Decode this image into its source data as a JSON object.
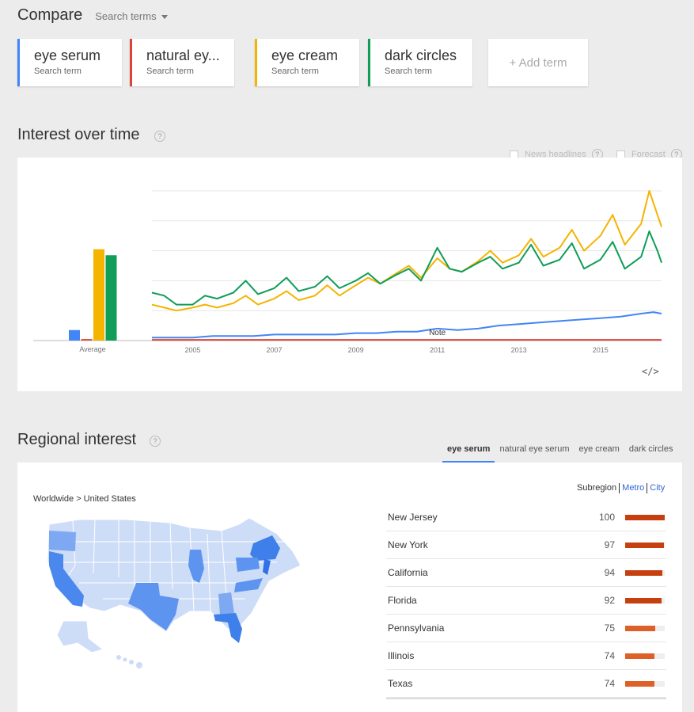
{
  "compare": {
    "title": "Compare",
    "search_terms_label": "Search terms",
    "add_term_label": "+ Add term"
  },
  "terms": [
    {
      "name": "eye serum",
      "sub": "Search term",
      "color": "#4285f4"
    },
    {
      "name": "natural ey...",
      "sub": "Search term",
      "color": "#db4437"
    },
    {
      "name": "eye cream",
      "sub": "Search term",
      "color": "#f4b400"
    },
    {
      "name": "dark circles",
      "sub": "Search term",
      "color": "#0f9d58"
    }
  ],
  "interest": {
    "title": "Interest over time",
    "help": "?",
    "news_headlines_label": "News headlines",
    "forecast_label": "Forecast",
    "embed_icon": "</>"
  },
  "chart_data": {
    "type": "line",
    "average": {
      "label": "Average",
      "values": [
        7,
        1,
        61,
        57
      ],
      "colors": [
        "#4285f4",
        "#db4437",
        "#f4b400",
        "#0f9d58"
      ]
    },
    "x_tick_labels": [
      "2005",
      "2007",
      "2009",
      "2011",
      "2013",
      "2015"
    ],
    "x_tick_years": [
      2005,
      2007,
      2009,
      2011,
      2013,
      2015
    ],
    "x_range": [
      2004.0,
      2016.5
    ],
    "ylim": [
      0,
      100
    ],
    "gridlines": 5,
    "annotation": {
      "label": "Note",
      "x": 2011.0
    },
    "series": [
      {
        "color": "#4285f4",
        "points": [
          [
            2004.0,
            2
          ],
          [
            2004.5,
            2
          ],
          [
            2005.0,
            2
          ],
          [
            2005.5,
            3
          ],
          [
            2006.0,
            3
          ],
          [
            2006.5,
            3
          ],
          [
            2007.0,
            4
          ],
          [
            2007.5,
            4
          ],
          [
            2008.0,
            4
          ],
          [
            2008.5,
            4
          ],
          [
            2009.0,
            5
          ],
          [
            2009.5,
            5
          ],
          [
            2010.0,
            6
          ],
          [
            2010.5,
            6
          ],
          [
            2011.0,
            8
          ],
          [
            2011.5,
            7
          ],
          [
            2012.0,
            8
          ],
          [
            2012.5,
            10
          ],
          [
            2013.0,
            11
          ],
          [
            2013.5,
            12
          ],
          [
            2014.0,
            13
          ],
          [
            2014.5,
            14
          ],
          [
            2015.0,
            15
          ],
          [
            2015.5,
            16
          ],
          [
            2016.0,
            18
          ],
          [
            2016.3,
            19
          ],
          [
            2016.5,
            18
          ]
        ]
      },
      {
        "color": "#db4437",
        "points": [
          [
            2004.0,
            0.5
          ],
          [
            2016.5,
            0.5
          ]
        ]
      },
      {
        "color": "#f4b400",
        "points": [
          [
            2004.0,
            24
          ],
          [
            2004.3,
            22
          ],
          [
            2004.6,
            20
          ],
          [
            2005.0,
            22
          ],
          [
            2005.3,
            24
          ],
          [
            2005.6,
            22
          ],
          [
            2006.0,
            25
          ],
          [
            2006.3,
            30
          ],
          [
            2006.6,
            24
          ],
          [
            2007.0,
            28
          ],
          [
            2007.3,
            33
          ],
          [
            2007.6,
            27
          ],
          [
            2008.0,
            30
          ],
          [
            2008.3,
            37
          ],
          [
            2008.6,
            30
          ],
          [
            2009.0,
            37
          ],
          [
            2009.3,
            42
          ],
          [
            2009.6,
            38
          ],
          [
            2010.0,
            45
          ],
          [
            2010.3,
            50
          ],
          [
            2010.6,
            42
          ],
          [
            2011.0,
            55
          ],
          [
            2011.3,
            48
          ],
          [
            2011.6,
            46
          ],
          [
            2012.0,
            53
          ],
          [
            2012.3,
            60
          ],
          [
            2012.6,
            52
          ],
          [
            2013.0,
            57
          ],
          [
            2013.3,
            68
          ],
          [
            2013.6,
            56
          ],
          [
            2014.0,
            62
          ],
          [
            2014.3,
            74
          ],
          [
            2014.6,
            60
          ],
          [
            2015.0,
            70
          ],
          [
            2015.3,
            84
          ],
          [
            2015.6,
            64
          ],
          [
            2016.0,
            78
          ],
          [
            2016.2,
            100
          ],
          [
            2016.4,
            84
          ],
          [
            2016.5,
            76
          ]
        ]
      },
      {
        "color": "#0f9d58",
        "points": [
          [
            2004.0,
            32
          ],
          [
            2004.3,
            30
          ],
          [
            2004.6,
            24
          ],
          [
            2005.0,
            24
          ],
          [
            2005.3,
            30
          ],
          [
            2005.6,
            28
          ],
          [
            2006.0,
            32
          ],
          [
            2006.3,
            40
          ],
          [
            2006.6,
            31
          ],
          [
            2007.0,
            35
          ],
          [
            2007.3,
            42
          ],
          [
            2007.6,
            33
          ],
          [
            2008.0,
            36
          ],
          [
            2008.3,
            43
          ],
          [
            2008.6,
            35
          ],
          [
            2009.0,
            40
          ],
          [
            2009.3,
            45
          ],
          [
            2009.6,
            38
          ],
          [
            2010.0,
            44
          ],
          [
            2010.3,
            48
          ],
          [
            2010.6,
            40
          ],
          [
            2011.0,
            62
          ],
          [
            2011.3,
            48
          ],
          [
            2011.6,
            46
          ],
          [
            2012.0,
            52
          ],
          [
            2012.3,
            56
          ],
          [
            2012.6,
            48
          ],
          [
            2013.0,
            52
          ],
          [
            2013.3,
            64
          ],
          [
            2013.6,
            50
          ],
          [
            2014.0,
            54
          ],
          [
            2014.3,
            65
          ],
          [
            2014.6,
            48
          ],
          [
            2015.0,
            54
          ],
          [
            2015.3,
            66
          ],
          [
            2015.6,
            48
          ],
          [
            2016.0,
            56
          ],
          [
            2016.2,
            73
          ],
          [
            2016.4,
            60
          ],
          [
            2016.5,
            52
          ]
        ]
      }
    ]
  },
  "regional": {
    "title": "Regional interest",
    "help": "?",
    "tabs": [
      "eye serum",
      "natural eye serum",
      "eye cream",
      "dark circles"
    ],
    "subregion": "Subregion",
    "metro": "Metro",
    "city": "City",
    "breadcrumb": "Worldwide > United States",
    "rows": [
      {
        "name": "New Jersey",
        "value": 100,
        "color": "#c6400f"
      },
      {
        "name": "New York",
        "value": 97,
        "color": "#c6400f"
      },
      {
        "name": "California",
        "value": 94,
        "color": "#c6400f"
      },
      {
        "name": "Florida",
        "value": 92,
        "color": "#c6400f"
      },
      {
        "name": "Pennsylvania",
        "value": 75,
        "color": "#dd6026"
      },
      {
        "name": "Illinois",
        "value": 74,
        "color": "#dd6026"
      },
      {
        "name": "Texas",
        "value": 74,
        "color": "#dd6026"
      }
    ]
  }
}
